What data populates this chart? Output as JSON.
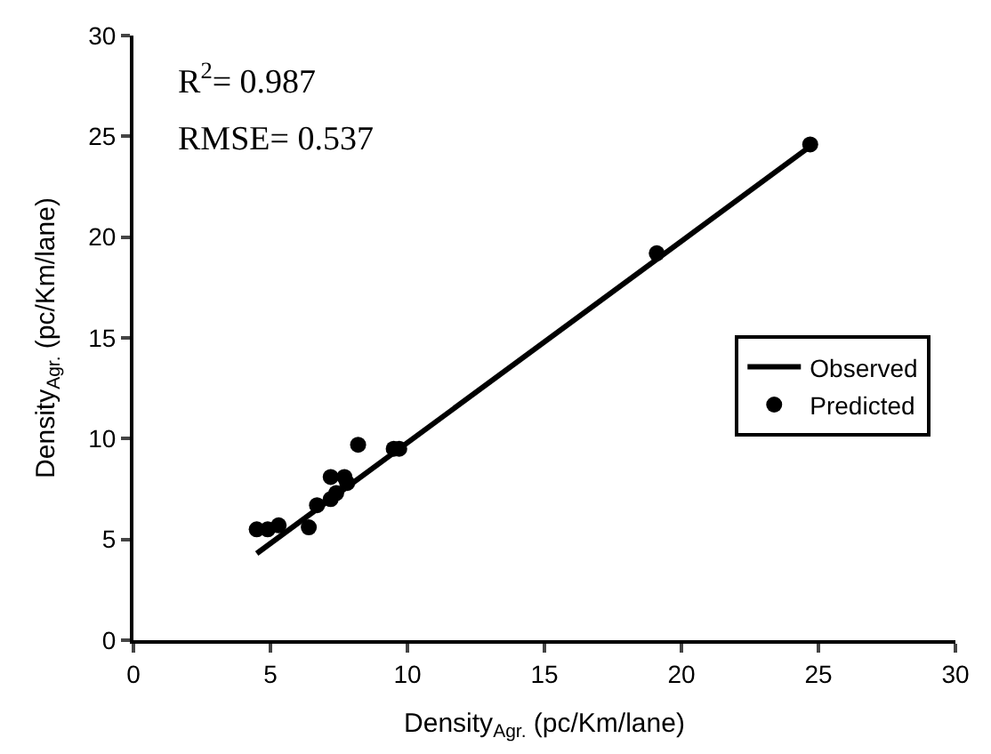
{
  "chart_data": {
    "type": "scatter",
    "xlabel": "Density$_{Agr.}$ (pc/Km/lane)",
    "ylabel": "Density$_{Agr.}$ (pc/Km/lane)",
    "xlim": [
      0,
      30
    ],
    "ylim": [
      0,
      30
    ],
    "xticks": [
      0,
      5,
      10,
      15,
      20,
      25,
      30
    ],
    "yticks": [
      0,
      5,
      10,
      15,
      20,
      25,
      30
    ],
    "legend": "right",
    "annotations": [
      "R$^{2}$= 0.987",
      "RMSE= 0.537"
    ],
    "series": [
      {
        "name": "Observed",
        "type": "line",
        "color": "#000000",
        "marker": "none",
        "line_style": "solid",
        "x": [
          4.5,
          24.6
        ],
        "values": [
          4.3,
          24.4
        ]
      },
      {
        "name": "Predicted",
        "color": "#000000",
        "marker": "circle",
        "x": [
          4.5,
          4.9,
          5.3,
          6.4,
          6.7,
          7.2,
          7.2,
          7.4,
          7.7,
          7.8,
          8.2,
          9.5,
          9.7,
          19.1,
          24.7
        ],
        "values": [
          5.5,
          5.5,
          5.7,
          5.6,
          6.7,
          8.1,
          7.0,
          7.3,
          8.1,
          7.8,
          9.7,
          9.5,
          9.5,
          19.2,
          24.6
        ]
      }
    ]
  }
}
